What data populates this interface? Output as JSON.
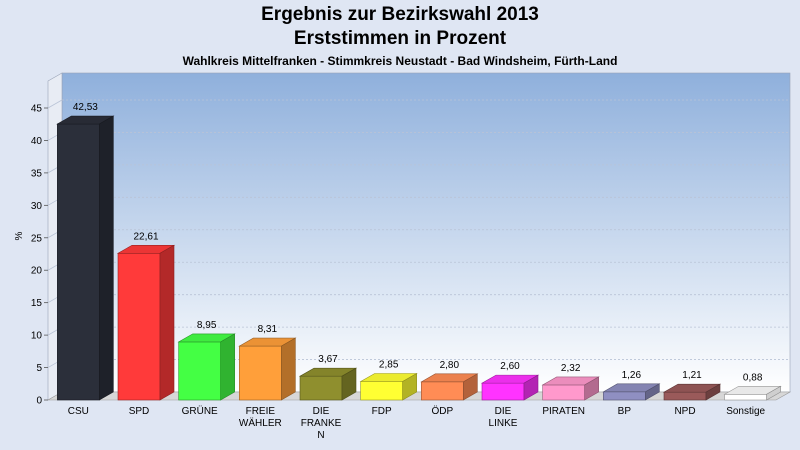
{
  "chart_data": {
    "type": "bar",
    "title": "Ergebnis zur Bezirkswahl 2013",
    "title_line2": "Erststimmen in Prozent",
    "subtitle": "Wahlkreis Mittelfranken - Stimmkreis Neustadt - Bad Windsheim, Fürth-Land",
    "ylabel": "%",
    "xlabel": "",
    "ylim": [
      0,
      45
    ],
    "yticks": [
      0,
      5,
      10,
      15,
      20,
      25,
      30,
      35,
      40,
      45
    ],
    "grid": true,
    "categories": [
      [
        "CSU"
      ],
      [
        "SPD"
      ],
      [
        "GRÜNE"
      ],
      [
        "FREIE",
        "WÄHLER"
      ],
      [
        "DIE",
        "FRANKE",
        "N"
      ],
      [
        "FDP"
      ],
      [
        "ÖDP"
      ],
      [
        "DIE",
        "LINKE"
      ],
      [
        "PIRATEN"
      ],
      [
        "BP"
      ],
      [
        "NPD"
      ],
      [
        "Sonstige"
      ]
    ],
    "values": [
      42.53,
      22.61,
      8.95,
      8.31,
      3.67,
      2.85,
      2.8,
      2.6,
      2.32,
      1.26,
      1.21,
      0.88
    ],
    "value_labels": [
      "42,53",
      "22,61",
      "8,95",
      "8,31",
      "3,67",
      "2,85",
      "2,80",
      "2,60",
      "2,32",
      "1,26",
      "1,21",
      "0,88"
    ],
    "colors": [
      "#2b2f3a",
      "#ff3a3a",
      "#44ff44",
      "#ff9f3a",
      "#8f8f2e",
      "#ffff33",
      "#ff8c55",
      "#ff33ff",
      "#ff99cc",
      "#8f8fc2",
      "#9a5a5a",
      "#ffffff"
    ]
  }
}
